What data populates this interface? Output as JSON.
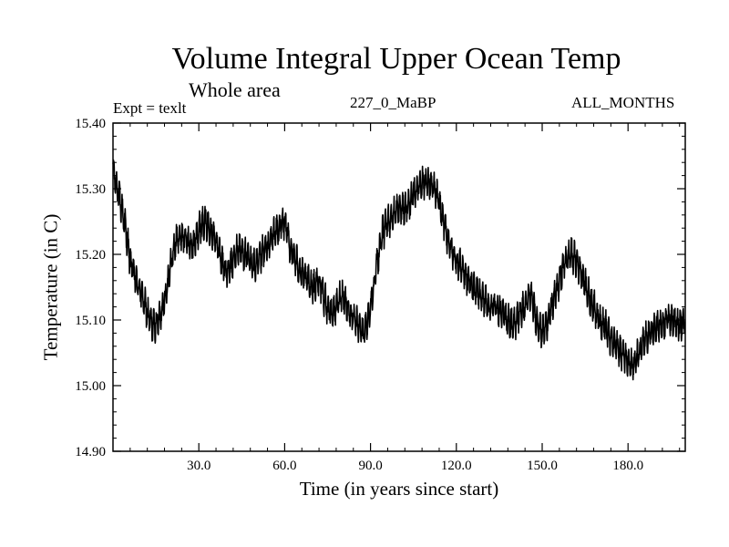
{
  "chart_data": {
    "type": "line",
    "title": "Volume Integral Upper Ocean Temp",
    "subtitle": "Whole area",
    "annotations": {
      "experiment": "Expt = texlt",
      "run": "227_0_MaBP",
      "months": "ALL_MONTHS"
    },
    "xlabel": "Time (in years since start)",
    "ylabel": "Temperature (in C)",
    "xlim": [
      0,
      200
    ],
    "ylim": [
      14.9,
      15.4
    ],
    "xticks": [
      30,
      60,
      90,
      120,
      150,
      180
    ],
    "xtick_labels": [
      "30.0",
      "60.0",
      "90.0",
      "120.0",
      "150.0",
      "180.0"
    ],
    "yticks": [
      14.9,
      15.0,
      15.1,
      15.2,
      15.3,
      15.4
    ],
    "ytick_labels": [
      "14.90",
      "15.00",
      "15.10",
      "15.20",
      "15.30",
      "15.40"
    ],
    "series": [
      {
        "name": "Volume Integral Upper Ocean Temp",
        "color": "#000000",
        "x": [
          0,
          2,
          4,
          6,
          8,
          10,
          12,
          14,
          16,
          18,
          20,
          22,
          24,
          26,
          28,
          30,
          32,
          34,
          36,
          38,
          40,
          42,
          44,
          46,
          48,
          50,
          52,
          54,
          56,
          58,
          60,
          62,
          64,
          66,
          68,
          70,
          72,
          74,
          76,
          78,
          80,
          82,
          84,
          86,
          88,
          90,
          92,
          94,
          96,
          98,
          100,
          102,
          104,
          106,
          108,
          110,
          112,
          114,
          116,
          118,
          120,
          122,
          124,
          126,
          128,
          130,
          132,
          134,
          136,
          138,
          140,
          142,
          144,
          146,
          148,
          150,
          152,
          154,
          156,
          158,
          160,
          162,
          164,
          166,
          168,
          170,
          172,
          174,
          176,
          178,
          180,
          182,
          184,
          186,
          188,
          190,
          192,
          194,
          196,
          198,
          200
        ],
        "values": [
          15.33,
          15.29,
          15.25,
          15.19,
          15.16,
          15.14,
          15.11,
          15.09,
          15.1,
          15.13,
          15.18,
          15.22,
          15.23,
          15.22,
          15.21,
          15.24,
          15.25,
          15.24,
          15.22,
          15.19,
          15.17,
          15.19,
          15.21,
          15.2,
          15.19,
          15.18,
          15.2,
          15.21,
          15.23,
          15.24,
          15.25,
          15.21,
          15.19,
          15.17,
          15.16,
          15.15,
          15.16,
          15.13,
          15.11,
          15.12,
          15.14,
          15.12,
          15.1,
          15.09,
          15.08,
          15.12,
          15.18,
          15.23,
          15.25,
          15.26,
          15.27,
          15.27,
          15.28,
          15.3,
          15.31,
          15.31,
          15.3,
          15.28,
          15.24,
          15.21,
          15.19,
          15.18,
          15.16,
          15.15,
          15.14,
          15.13,
          15.12,
          15.12,
          15.11,
          15.1,
          15.09,
          15.11,
          15.12,
          15.14,
          15.1,
          15.08,
          15.1,
          15.13,
          15.16,
          15.19,
          15.2,
          15.19,
          15.17,
          15.14,
          15.12,
          15.1,
          15.09,
          15.07,
          15.06,
          15.05,
          15.04,
          15.03,
          15.05,
          15.07,
          15.08,
          15.09,
          15.09,
          15.1,
          15.1,
          15.09,
          15.1
        ]
      }
    ]
  }
}
